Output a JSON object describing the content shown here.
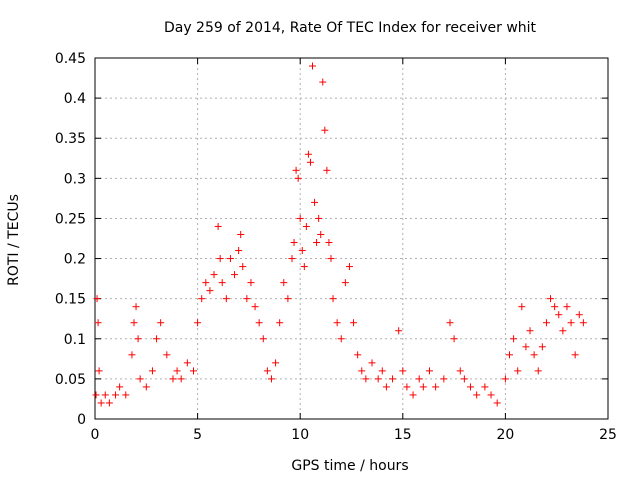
{
  "chart_data": {
    "type": "scatter",
    "title": "Day 259 of 2014, Rate Of TEC Index for receiver whit",
    "xlabel": "GPS time / hours",
    "ylabel": "ROTI / TECUs",
    "xlim": [
      0,
      25
    ],
    "ylim": [
      0,
      0.45
    ],
    "xticks": [
      "0",
      "5",
      "10",
      "15",
      "20",
      "25"
    ],
    "yticks": [
      "0",
      "0.05",
      "0.1",
      "0.15",
      "0.2",
      "0.25",
      "0.3",
      "0.35",
      "0.4",
      "0.45"
    ],
    "grid": true,
    "marker": "+",
    "color": "#ff0000",
    "series": [
      {
        "x": [
          0.05,
          0.1,
          0.15,
          0.2,
          0.3,
          0.5,
          0.7,
          1.0,
          1.2,
          1.5,
          1.8,
          1.9,
          2.0,
          2.1,
          2.2,
          2.5,
          2.8,
          3.0,
          3.2,
          3.5,
          3.8,
          4.0,
          4.2,
          4.5,
          4.8,
          5.0,
          5.2,
          5.4,
          5.6,
          5.8,
          6.0,
          6.1,
          6.2,
          6.4,
          6.6,
          6.8,
          7.0,
          7.1,
          7.2,
          7.4,
          7.6,
          7.8,
          8.0,
          8.2,
          8.4,
          8.6,
          8.8,
          9.0,
          9.2,
          9.4,
          9.6,
          9.7,
          9.8,
          9.9,
          10.0,
          10.1,
          10.2,
          10.3,
          10.4,
          10.5,
          10.6,
          10.7,
          10.8,
          10.9,
          11.0,
          11.1,
          11.2,
          11.3,
          11.4,
          11.5,
          11.6,
          11.8,
          12.0,
          12.2,
          12.4,
          12.6,
          12.8,
          13.0,
          13.2,
          13.5,
          13.8,
          14.0,
          14.2,
          14.5,
          14.8,
          15.0,
          15.2,
          15.5,
          15.8,
          16.0,
          16.3,
          16.6,
          17.0,
          17.3,
          17.5,
          17.8,
          18.0,
          18.3,
          18.6,
          19.0,
          19.3,
          19.6,
          20.0,
          20.2,
          20.4,
          20.6,
          20.8,
          21.0,
          21.2,
          21.4,
          21.6,
          21.8,
          22.0,
          22.2,
          22.4,
          22.6,
          22.8,
          23.0,
          23.2,
          23.4,
          23.6,
          23.8
        ],
        "y": [
          0.03,
          0.15,
          0.12,
          0.06,
          0.02,
          0.03,
          0.02,
          0.03,
          0.04,
          0.03,
          0.08,
          0.12,
          0.14,
          0.1,
          0.05,
          0.04,
          0.06,
          0.1,
          0.12,
          0.08,
          0.05,
          0.06,
          0.05,
          0.07,
          0.06,
          0.12,
          0.15,
          0.17,
          0.16,
          0.18,
          0.24,
          0.2,
          0.17,
          0.15,
          0.2,
          0.18,
          0.21,
          0.23,
          0.19,
          0.15,
          0.17,
          0.14,
          0.12,
          0.1,
          0.06,
          0.05,
          0.07,
          0.12,
          0.17,
          0.15,
          0.2,
          0.22,
          0.31,
          0.3,
          0.25,
          0.21,
          0.19,
          0.24,
          0.33,
          0.32,
          0.44,
          0.27,
          0.22,
          0.25,
          0.23,
          0.42,
          0.36,
          0.31,
          0.22,
          0.2,
          0.15,
          0.12,
          0.1,
          0.17,
          0.19,
          0.12,
          0.08,
          0.06,
          0.05,
          0.07,
          0.05,
          0.06,
          0.04,
          0.05,
          0.11,
          0.06,
          0.04,
          0.03,
          0.05,
          0.04,
          0.06,
          0.04,
          0.05,
          0.12,
          0.1,
          0.06,
          0.05,
          0.04,
          0.03,
          0.04,
          0.03,
          0.02,
          0.05,
          0.08,
          0.1,
          0.06,
          0.14,
          0.09,
          0.11,
          0.08,
          0.06,
          0.09,
          0.12,
          0.15,
          0.14,
          0.13,
          0.11,
          0.14,
          0.12,
          0.08,
          0.13,
          0.12
        ]
      }
    ]
  }
}
